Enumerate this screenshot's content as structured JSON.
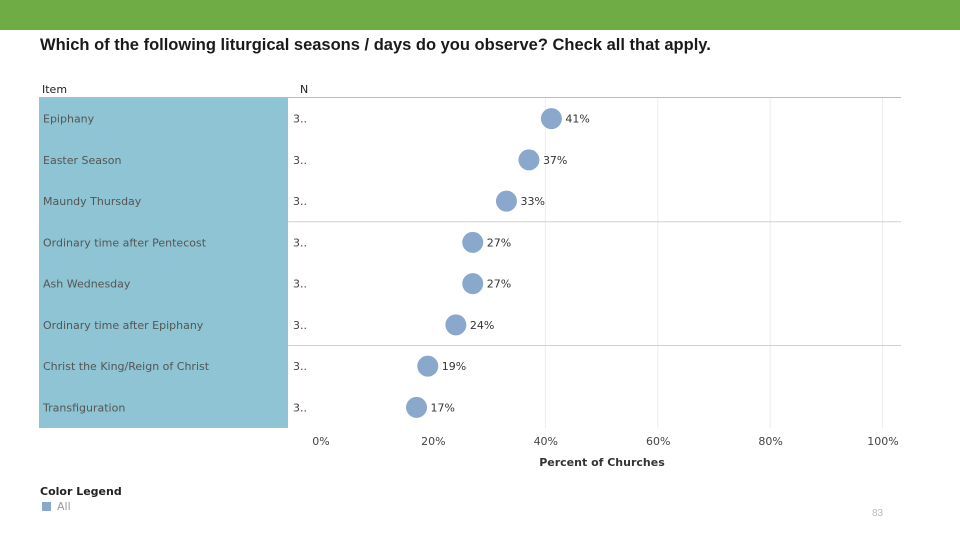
{
  "header": {
    "band_color": "#6fac45"
  },
  "slide": {
    "title": "Which of the following liturgical seasons / days do you observe? Check all that apply.",
    "page_number": "83"
  },
  "table": {
    "col_item": "Item",
    "col_n": "N",
    "label_bg": "#8ec4d3"
  },
  "legend": {
    "title": "Color Legend",
    "items": [
      {
        "label": "All",
        "color": "#8aa7cc"
      }
    ]
  },
  "chart_data": {
    "type": "scatter",
    "orientation": "horizontal",
    "categories": [
      "Epiphany",
      "Easter Season",
      "Maundy Thursday",
      "Ordinary time after Pentecost",
      "Ash Wednesday",
      "Ordinary time after Epiphany",
      "Christ the King/Reign of Christ",
      "Transfiguration"
    ],
    "n_values": [
      "3..",
      "3..",
      "3..",
      "3..",
      "3..",
      "3..",
      "3..",
      "3.."
    ],
    "series": [
      {
        "name": "All",
        "values": [
          41,
          37,
          33,
          27,
          27,
          24,
          19,
          17
        ],
        "color": "#8aa7cc"
      }
    ],
    "data_labels": [
      "41%",
      "37%",
      "33%",
      "27%",
      "27%",
      "24%",
      "19%",
      "17%"
    ],
    "xlabel": "Percent of Churches",
    "xlim": [
      0,
      100
    ],
    "xticks": [
      "0%",
      "20%",
      "40%",
      "60%",
      "80%",
      "100%"
    ],
    "grid": true,
    "legend_position": "bottom-left"
  }
}
